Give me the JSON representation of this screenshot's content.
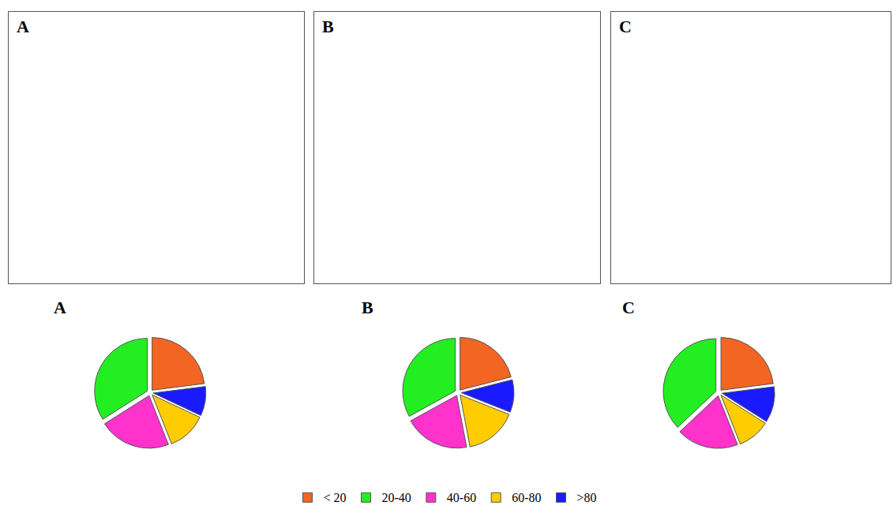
{
  "panels": [
    {
      "label": "A"
    },
    {
      "label": "B"
    },
    {
      "label": "C"
    }
  ],
  "chart_data": [
    {
      "type": "pie",
      "title": "A",
      "categories": [
        "< 20",
        "20-40",
        "40-60",
        "60-80",
        ">80"
      ],
      "values": [
        23,
        34,
        22,
        12,
        9
      ],
      "colors": [
        "#f26522",
        "#22ee22",
        "#ff33cc",
        "#ffcc00",
        "#1a1aff"
      ],
      "legend": "bottom"
    },
    {
      "type": "pie",
      "title": "B",
      "categories": [
        "< 20",
        "20-40",
        "40-60",
        "60-80",
        ">80"
      ],
      "values": [
        21,
        33,
        20,
        16,
        10
      ],
      "colors": [
        "#f26522",
        "#22ee22",
        "#ff33cc",
        "#ffcc00",
        "#1a1aff"
      ],
      "legend": "bottom"
    },
    {
      "type": "pie",
      "title": "C",
      "categories": [
        "< 20",
        "20-40",
        "40-60",
        "60-80",
        ">80"
      ],
      "values": [
        23,
        37,
        19,
        10,
        11
      ],
      "colors": [
        "#f26522",
        "#22ee22",
        "#ff33cc",
        "#ffcc00",
        "#1a1aff"
      ],
      "legend": "bottom"
    }
  ]
}
